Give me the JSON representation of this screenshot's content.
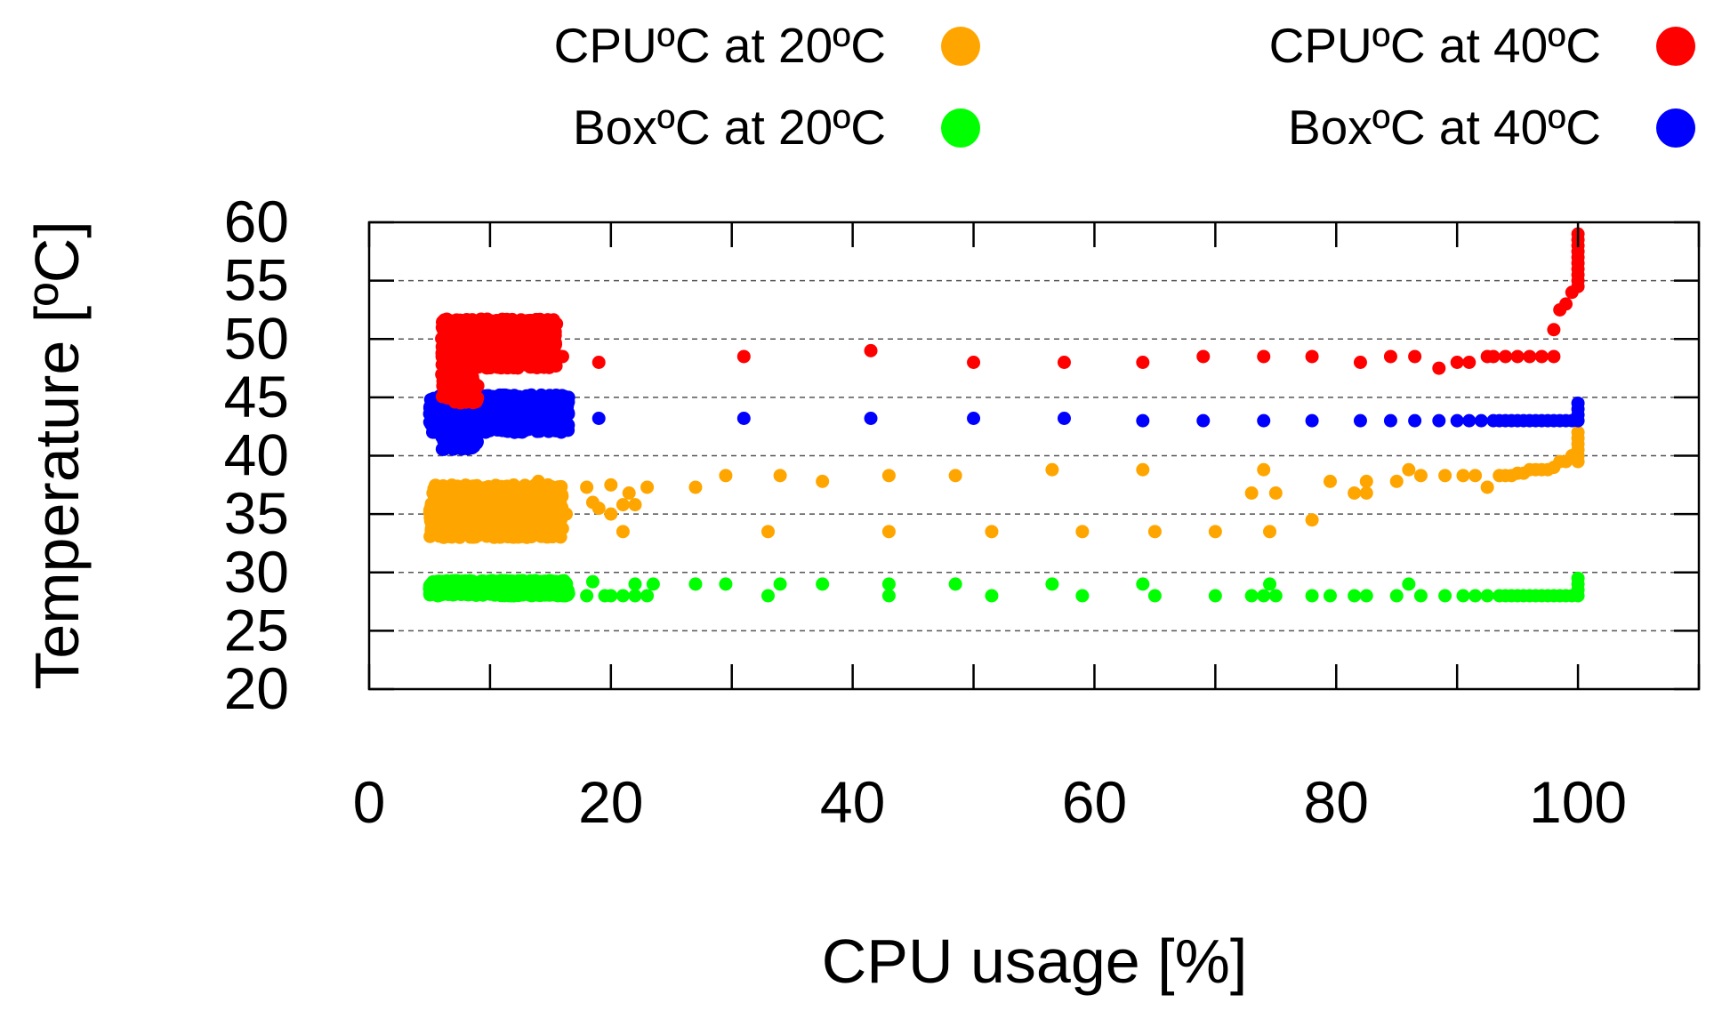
{
  "chart_data": {
    "type": "scatter",
    "title": "",
    "xlabel": "CPU usage [%]",
    "ylabel": "Temperature [ºC]",
    "xlim": [
      0,
      110
    ],
    "ylim": [
      20,
      60
    ],
    "xticks": [
      0,
      20,
      40,
      60,
      80,
      100
    ],
    "xtick_labels": [
      "0",
      "20",
      "40",
      "60",
      "80",
      "100"
    ],
    "yticks": [
      20,
      25,
      30,
      35,
      40,
      45,
      50,
      55,
      60
    ],
    "ytick_labels": [
      "20",
      "25",
      "30",
      "35",
      "40",
      "45",
      "50",
      "55",
      "60"
    ],
    "grid": "horizontal dashed",
    "legend_position": "top",
    "series": [
      {
        "name": "CPUºC at 20ºC",
        "color": "#ffa500",
        "clusters": [
          {
            "x": [
              5,
              16
            ],
            "y": [
              33,
              37.5
            ],
            "count": 900
          }
        ],
        "points": [
          [
            14,
            37.8
          ],
          [
            16.3,
            35
          ],
          [
            18,
            37.3
          ],
          [
            18.5,
            36
          ],
          [
            19,
            35.5
          ],
          [
            20,
            35
          ],
          [
            21,
            35.8
          ],
          [
            22,
            35.8
          ],
          [
            23,
            37.3
          ],
          [
            20,
            37.5
          ],
          [
            21.5,
            36.8
          ],
          [
            21,
            33.5
          ],
          [
            27,
            37.3
          ],
          [
            29.5,
            38.3
          ],
          [
            33,
            33.5
          ],
          [
            34,
            38.3
          ],
          [
            37.5,
            37.8
          ],
          [
            43,
            38.3
          ],
          [
            43,
            33.5
          ],
          [
            48.5,
            38.3
          ],
          [
            51.5,
            33.5
          ],
          [
            56.5,
            38.8
          ],
          [
            59,
            33.5
          ],
          [
            64,
            38.8
          ],
          [
            65,
            33.5
          ],
          [
            70,
            33.5
          ],
          [
            73,
            36.8
          ],
          [
            74,
            38.8
          ],
          [
            74.5,
            33.5
          ],
          [
            75,
            36.8
          ],
          [
            78,
            34.5
          ],
          [
            79.5,
            37.8
          ],
          [
            81.5,
            36.8
          ],
          [
            82.5,
            36.8
          ],
          [
            82.5,
            37.8
          ],
          [
            85,
            37.8
          ],
          [
            86,
            38.8
          ],
          [
            87,
            38.3
          ],
          [
            89,
            38.3
          ],
          [
            90.5,
            38.3
          ],
          [
            91.5,
            38.3
          ],
          [
            92.5,
            37.3
          ],
          [
            93.5,
            38.3
          ],
          [
            94,
            38.3
          ],
          [
            94.5,
            38.3
          ],
          [
            95,
            38.5
          ],
          [
            95.5,
            38.5
          ],
          [
            96,
            38.8
          ],
          [
            96.5,
            38.8
          ],
          [
            97,
            38.8
          ],
          [
            97.5,
            38.8
          ],
          [
            98,
            39
          ],
          [
            98.5,
            39.5
          ],
          [
            99,
            39.5
          ],
          [
            99.5,
            40
          ],
          [
            100,
            39.5
          ],
          [
            100,
            40
          ],
          [
            100,
            40.5
          ],
          [
            100,
            41
          ],
          [
            100,
            41.5
          ],
          [
            100,
            42
          ]
        ]
      },
      {
        "name": "CPUºC at 40ºC",
        "color": "#ff0000",
        "clusters": [
          {
            "x": [
              6,
              15.5
            ],
            "y": [
              47.5,
              51.7
            ],
            "count": 900
          },
          {
            "x": [
              6,
              9
            ],
            "y": [
              44.5,
              47.5
            ],
            "count": 120
          }
        ],
        "points": [
          [
            16,
            48.5
          ],
          [
            15.5,
            51.3
          ],
          [
            19,
            48
          ],
          [
            31,
            48.5
          ],
          [
            41.5,
            49
          ],
          [
            50,
            48
          ],
          [
            57.5,
            48
          ],
          [
            64,
            48
          ],
          [
            69,
            48.5
          ],
          [
            74,
            48.5
          ],
          [
            78,
            48.5
          ],
          [
            82,
            48
          ],
          [
            84.5,
            48.5
          ],
          [
            86.5,
            48.5
          ],
          [
            88.5,
            47.5
          ],
          [
            90,
            48
          ],
          [
            91,
            48
          ],
          [
            92.5,
            48.5
          ],
          [
            93,
            48.5
          ],
          [
            94,
            48.5
          ],
          [
            95,
            48.5
          ],
          [
            96,
            48.5
          ],
          [
            97,
            48.5
          ],
          [
            98,
            48.5
          ],
          [
            98,
            50.8
          ],
          [
            98.5,
            52.5
          ],
          [
            99,
            53
          ],
          [
            99.5,
            54
          ],
          [
            100,
            54.5
          ],
          [
            100,
            55
          ],
          [
            100,
            55.5
          ],
          [
            100,
            56
          ],
          [
            100,
            56.5
          ],
          [
            100,
            57
          ],
          [
            100,
            57.5
          ],
          [
            100,
            58
          ],
          [
            100,
            58.5
          ],
          [
            100,
            59
          ]
        ]
      },
      {
        "name": "BoxºC at 20ºC",
        "color": "#00ff00",
        "clusters": [
          {
            "x": [
              5,
              16.5
            ],
            "y": [
              28,
              29.3
            ],
            "count": 700
          }
        ],
        "points": [
          [
            18,
            28
          ],
          [
            18.5,
            29.2
          ],
          [
            19.5,
            28
          ],
          [
            20,
            28
          ],
          [
            21,
            28
          ],
          [
            22,
            29
          ],
          [
            22,
            28
          ],
          [
            23,
            28
          ],
          [
            23.5,
            29
          ],
          [
            27,
            29
          ],
          [
            29.5,
            29
          ],
          [
            33,
            28
          ],
          [
            34,
            29
          ],
          [
            37.5,
            29
          ],
          [
            43,
            28
          ],
          [
            43,
            29
          ],
          [
            48.5,
            29
          ],
          [
            51.5,
            28
          ],
          [
            56.5,
            29
          ],
          [
            59,
            28
          ],
          [
            64,
            29
          ],
          [
            65,
            28
          ],
          [
            70,
            28
          ],
          [
            73,
            28
          ],
          [
            74,
            28
          ],
          [
            74.5,
            29
          ],
          [
            75,
            28
          ],
          [
            78,
            28
          ],
          [
            79.5,
            28
          ],
          [
            81.5,
            28
          ],
          [
            82.5,
            28
          ],
          [
            85,
            28
          ],
          [
            86,
            29
          ],
          [
            87,
            28
          ],
          [
            89,
            28
          ],
          [
            90.5,
            28
          ],
          [
            91.5,
            28
          ],
          [
            92.5,
            28
          ],
          [
            93.5,
            28
          ],
          [
            94,
            28
          ],
          [
            94.5,
            28
          ],
          [
            95,
            28
          ],
          [
            95.5,
            28
          ],
          [
            96,
            28
          ],
          [
            96.5,
            28
          ],
          [
            97,
            28
          ],
          [
            97.5,
            28
          ],
          [
            98,
            28
          ],
          [
            98.5,
            28
          ],
          [
            99,
            28
          ],
          [
            99.5,
            28
          ],
          [
            100,
            28
          ],
          [
            100,
            28.5
          ],
          [
            100,
            29
          ],
          [
            100,
            29.5
          ]
        ]
      },
      {
        "name": "BoxºC at 40ºC",
        "color": "#0000ff",
        "clusters": [
          {
            "x": [
              5,
              16.5
            ],
            "y": [
              42,
              45.2
            ],
            "count": 800
          },
          {
            "x": [
              6,
              9
            ],
            "y": [
              40.5,
              42
            ],
            "count": 60
          }
        ],
        "points": [
          [
            19,
            43.2
          ],
          [
            31,
            43.2
          ],
          [
            41.5,
            43.2
          ],
          [
            50,
            43.2
          ],
          [
            57.5,
            43.2
          ],
          [
            64,
            43
          ],
          [
            69,
            43
          ],
          [
            74,
            43
          ],
          [
            78,
            43
          ],
          [
            82,
            43
          ],
          [
            84.5,
            43
          ],
          [
            86.5,
            43
          ],
          [
            88.5,
            43
          ],
          [
            90,
            43
          ],
          [
            91,
            43
          ],
          [
            92,
            43
          ],
          [
            93,
            43
          ],
          [
            93.5,
            43
          ],
          [
            94,
            43
          ],
          [
            94.5,
            43
          ],
          [
            95,
            43
          ],
          [
            95.5,
            43
          ],
          [
            96,
            43
          ],
          [
            96.5,
            43
          ],
          [
            97,
            43
          ],
          [
            97.5,
            43
          ],
          [
            98,
            43
          ],
          [
            98.5,
            43
          ],
          [
            99,
            43
          ],
          [
            99.5,
            43
          ],
          [
            100,
            43
          ],
          [
            100,
            43.5
          ],
          [
            100,
            44
          ],
          [
            100,
            44.5
          ]
        ]
      }
    ]
  }
}
